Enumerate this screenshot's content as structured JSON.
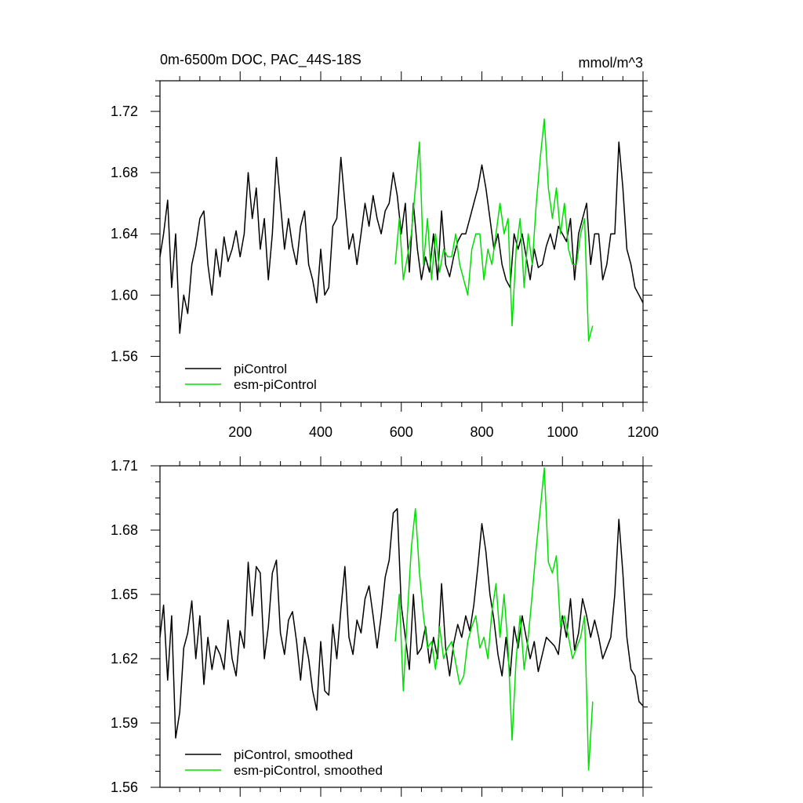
{
  "chart_data": [
    {
      "type": "line",
      "title": "0m-6500m DOC, PAC_44S-18S",
      "units": "mmol/m^3",
      "xlim": [
        1,
        1200
      ],
      "ylim": [
        1.53,
        1.74
      ],
      "yticks": [
        1.56,
        1.6,
        1.64,
        1.68,
        1.72
      ],
      "ytick_labels": [
        "1.56",
        "1.60",
        "1.64",
        "1.68",
        "1.72"
      ],
      "xticks": [
        200,
        400,
        600,
        800,
        1000,
        1200
      ],
      "xtick_labels": [
        "200",
        "400",
        "600",
        "800",
        "1000",
        "1200"
      ],
      "legend_position": "bottom-left",
      "series": [
        {
          "name": "piControl",
          "color": "#000000",
          "x": [
            1,
            10,
            20,
            30,
            40,
            50,
            60,
            70,
            80,
            90,
            100,
            110,
            120,
            130,
            140,
            150,
            160,
            170,
            180,
            190,
            200,
            210,
            220,
            230,
            240,
            250,
            260,
            270,
            280,
            290,
            300,
            310,
            320,
            330,
            340,
            350,
            360,
            370,
            380,
            390,
            400,
            410,
            420,
            430,
            440,
            450,
            460,
            470,
            480,
            490,
            500,
            510,
            520,
            530,
            540,
            550,
            560,
            570,
            580,
            590,
            600,
            610,
            620,
            630,
            640,
            650,
            660,
            670,
            680,
            690,
            700,
            710,
            720,
            730,
            740,
            750,
            760,
            770,
            780,
            790,
            800,
            810,
            820,
            830,
            840,
            850,
            860,
            870,
            880,
            890,
            900,
            910,
            920,
            930,
            940,
            950,
            960,
            970,
            980,
            990,
            1000,
            1010,
            1020,
            1030,
            1040,
            1050,
            1060,
            1070,
            1080,
            1090,
            1100,
            1110,
            1120,
            1130,
            1140,
            1150,
            1160,
            1170,
            1180,
            1190,
            1200
          ],
          "values": [
            1.625,
            1.64,
            1.662,
            1.605,
            1.64,
            1.575,
            1.6,
            1.588,
            1.62,
            1.632,
            1.65,
            1.655,
            1.62,
            1.6,
            1.63,
            1.612,
            1.638,
            1.622,
            1.63,
            1.642,
            1.625,
            1.64,
            1.68,
            1.65,
            1.67,
            1.63,
            1.65,
            1.61,
            1.64,
            1.69,
            1.66,
            1.63,
            1.65,
            1.632,
            1.62,
            1.645,
            1.655,
            1.62,
            1.61,
            1.595,
            1.63,
            1.6,
            1.605,
            1.645,
            1.65,
            1.69,
            1.66,
            1.63,
            1.64,
            1.62,
            1.64,
            1.66,
            1.645,
            1.665,
            1.65,
            1.64,
            1.655,
            1.66,
            1.68,
            1.665,
            1.64,
            1.66,
            1.615,
            1.66,
            1.63,
            1.61,
            1.625,
            1.615,
            1.64,
            1.61,
            1.655,
            1.62,
            1.612,
            1.625,
            1.635,
            1.64,
            1.64,
            1.65,
            1.66,
            1.67,
            1.685,
            1.67,
            1.65,
            1.63,
            1.64,
            1.62,
            1.61,
            1.605,
            1.64,
            1.63,
            1.64,
            1.625,
            1.61,
            1.63,
            1.618,
            1.62,
            1.632,
            1.64,
            1.63,
            1.645,
            1.64,
            1.635,
            1.65,
            1.61,
            1.64,
            1.65,
            1.66,
            1.62,
            1.64,
            1.64,
            1.61,
            1.62,
            1.64,
            1.64,
            1.7,
            1.67,
            1.63,
            1.62,
            1.605,
            1.6,
            1.595
          ]
        },
        {
          "name": "esm-piControl",
          "color": "#00e000",
          "x": [
            585,
            595,
            605,
            615,
            625,
            635,
            645,
            655,
            665,
            675,
            685,
            695,
            705,
            715,
            725,
            735,
            745,
            755,
            765,
            775,
            785,
            795,
            805,
            815,
            825,
            835,
            845,
            855,
            865,
            875,
            885,
            895,
            905,
            915,
            925,
            935,
            945,
            955,
            965,
            975,
            985,
            995,
            1005,
            1015,
            1025,
            1035,
            1045,
            1055,
            1065,
            1075
          ],
          "values": [
            1.62,
            1.65,
            1.61,
            1.625,
            1.64,
            1.67,
            1.7,
            1.62,
            1.65,
            1.61,
            1.64,
            1.615,
            1.63,
            1.625,
            1.625,
            1.64,
            1.62,
            1.61,
            1.6,
            1.63,
            1.64,
            1.64,
            1.61,
            1.63,
            1.62,
            1.64,
            1.66,
            1.64,
            1.65,
            1.58,
            1.63,
            1.65,
            1.605,
            1.64,
            1.62,
            1.66,
            1.69,
            1.715,
            1.67,
            1.65,
            1.67,
            1.64,
            1.66,
            1.63,
            1.62,
            1.62,
            1.64,
            1.65,
            1.57,
            1.58
          ]
        }
      ],
      "legend": [
        "piControl",
        "esm-piControl"
      ]
    },
    {
      "type": "line",
      "title": "",
      "xlim": [
        1,
        1200
      ],
      "ylim": [
        1.56,
        1.71
      ],
      "yticks": [
        1.56,
        1.59,
        1.62,
        1.65,
        1.68,
        1.71
      ],
      "ytick_labels": [
        "1.56",
        "1.59",
        "1.62",
        "1.65",
        "1.68",
        "1.71"
      ],
      "xticks": [
        200,
        400,
        600,
        800,
        1000,
        1200
      ],
      "legend_position": "bottom-left",
      "series": [
        {
          "name": "piControl, smoothed",
          "color": "#000000",
          "x": [
            1,
            10,
            20,
            30,
            40,
            50,
            60,
            70,
            80,
            90,
            100,
            110,
            120,
            130,
            140,
            150,
            160,
            170,
            180,
            190,
            200,
            210,
            220,
            230,
            240,
            250,
            260,
            270,
            280,
            290,
            300,
            310,
            320,
            330,
            340,
            350,
            360,
            370,
            380,
            390,
            400,
            410,
            420,
            430,
            440,
            450,
            460,
            470,
            480,
            490,
            500,
            510,
            520,
            530,
            540,
            550,
            560,
            570,
            580,
            590,
            600,
            610,
            620,
            630,
            640,
            650,
            660,
            670,
            680,
            690,
            700,
            710,
            720,
            730,
            740,
            750,
            760,
            770,
            780,
            790,
            800,
            810,
            820,
            830,
            840,
            850,
            860,
            870,
            880,
            890,
            900,
            910,
            920,
            930,
            940,
            950,
            960,
            970,
            980,
            990,
            1000,
            1010,
            1020,
            1030,
            1040,
            1050,
            1060,
            1070,
            1080,
            1090,
            1100,
            1110,
            1120,
            1130,
            1140,
            1150,
            1160,
            1170,
            1180,
            1190,
            1200
          ],
          "values": [
            1.63,
            1.645,
            1.61,
            1.64,
            1.583,
            1.595,
            1.625,
            1.632,
            1.647,
            1.62,
            1.64,
            1.608,
            1.63,
            1.615,
            1.626,
            1.622,
            1.615,
            1.638,
            1.62,
            1.612,
            1.633,
            1.625,
            1.665,
            1.64,
            1.663,
            1.66,
            1.62,
            1.635,
            1.66,
            1.666,
            1.632,
            1.622,
            1.638,
            1.642,
            1.628,
            1.61,
            1.63,
            1.62,
            1.605,
            1.596,
            1.628,
            1.605,
            1.603,
            1.636,
            1.62,
            1.643,
            1.663,
            1.63,
            1.622,
            1.638,
            1.632,
            1.648,
            1.654,
            1.64,
            1.625,
            1.64,
            1.658,
            1.666,
            1.688,
            1.69,
            1.645,
            1.63,
            1.615,
            1.65,
            1.622,
            1.625,
            1.635,
            1.618,
            1.63,
            1.62,
            1.655,
            1.625,
            1.612,
            1.627,
            1.636,
            1.63,
            1.64,
            1.633,
            1.645,
            1.663,
            1.683,
            1.67,
            1.65,
            1.638,
            1.622,
            1.612,
            1.63,
            1.612,
            1.635,
            1.625,
            1.64,
            1.63,
            1.62,
            1.628,
            1.614,
            1.622,
            1.63,
            1.628,
            1.626,
            1.622,
            1.64,
            1.63,
            1.648,
            1.624,
            1.632,
            1.648,
            1.64,
            1.63,
            1.638,
            1.63,
            1.62,
            1.625,
            1.63,
            1.65,
            1.685,
            1.66,
            1.63,
            1.615,
            1.612,
            1.6,
            1.598
          ]
        },
        {
          "name": "esm-piControl, smoothed",
          "color": "#00e000",
          "x": [
            585,
            595,
            605,
            615,
            625,
            635,
            645,
            655,
            665,
            675,
            685,
            695,
            705,
            715,
            725,
            735,
            745,
            755,
            765,
            775,
            785,
            795,
            805,
            815,
            825,
            835,
            845,
            855,
            865,
            875,
            885,
            895,
            905,
            915,
            925,
            935,
            945,
            955,
            965,
            975,
            985,
            995,
            1005,
            1015,
            1025,
            1035,
            1045,
            1055,
            1065,
            1075
          ],
          "values": [
            1.628,
            1.65,
            1.605,
            1.64,
            1.672,
            1.69,
            1.66,
            1.64,
            1.625,
            1.628,
            1.615,
            1.635,
            1.62,
            1.625,
            1.628,
            1.618,
            1.608,
            1.612,
            1.628,
            1.635,
            1.64,
            1.625,
            1.63,
            1.62,
            1.642,
            1.655,
            1.63,
            1.65,
            1.625,
            1.582,
            1.62,
            1.64,
            1.615,
            1.63,
            1.65,
            1.672,
            1.69,
            1.709,
            1.665,
            1.66,
            1.668,
            1.635,
            1.64,
            1.63,
            1.62,
            1.625,
            1.63,
            1.64,
            1.568,
            1.6
          ]
        }
      ],
      "legend": [
        "piControl, smoothed",
        "esm-piControl, smoothed"
      ]
    }
  ]
}
